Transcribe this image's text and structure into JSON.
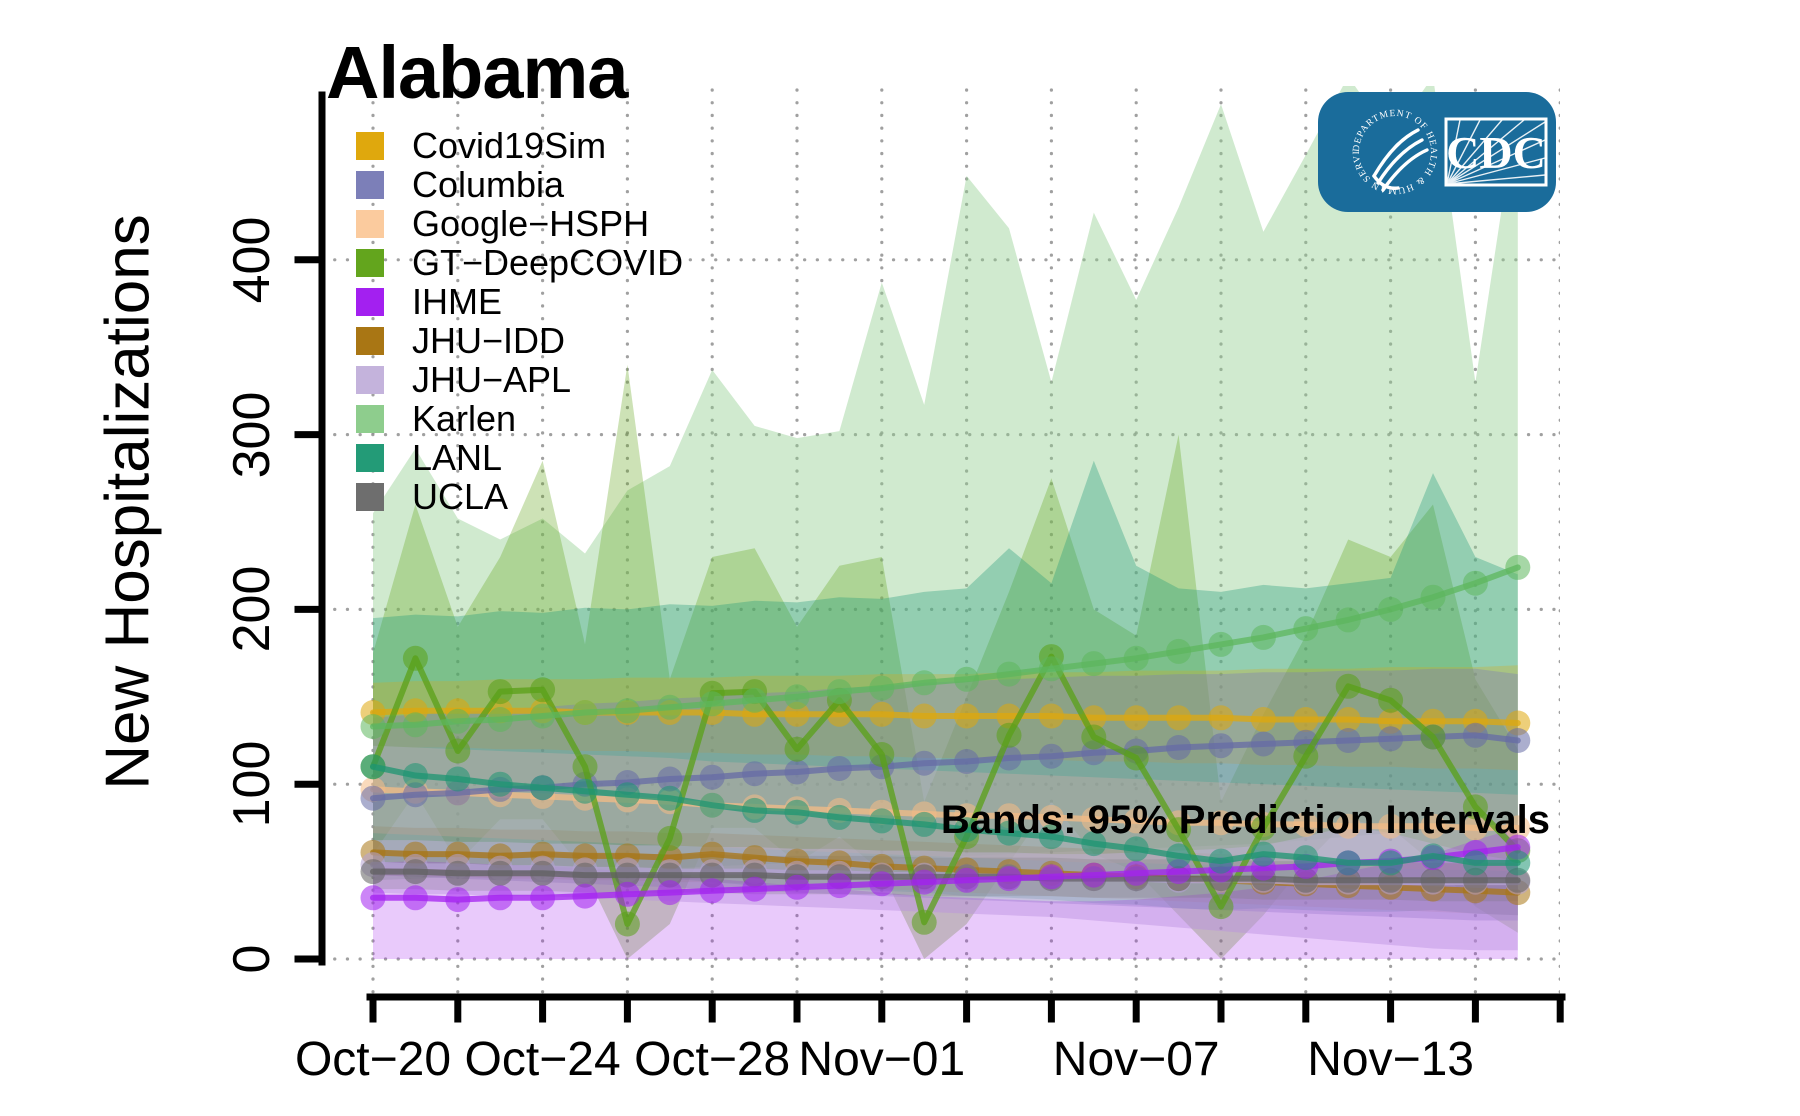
{
  "header": {
    "title": "Alabama"
  },
  "annotation": {
    "text": "Bands: 95% Prediction Intervals"
  },
  "cdc_logo": {
    "wordmark": "CDC",
    "seal_text": "DEPARTMENT OF HEALTH & HUMAN SERVICES USA",
    "bg_color": "#1A6C9B"
  },
  "legend": {
    "items": [
      {
        "label": "Covid19Sim",
        "color": "#DFA80D"
      },
      {
        "label": "Columbia",
        "color": "#7C7FB8"
      },
      {
        "label": "Google−HSPH",
        "color": "#FBCB9E"
      },
      {
        "label": "GT−DeepCOVID",
        "color": "#63A51D"
      },
      {
        "label": "IHME",
        "color": "#A320F0"
      },
      {
        "label": "JHU−IDD",
        "color": "#A97614"
      },
      {
        "label": "JHU−APL",
        "color": "#C4B3DC"
      },
      {
        "label": "Karlen",
        "color": "#8ECD8D"
      },
      {
        "label": "LANL",
        "color": "#239B77"
      },
      {
        "label": "UCLA",
        "color": "#6E6E6E"
      }
    ]
  },
  "chart_data": {
    "type": "line",
    "title": "Alabama",
    "ylabel": "New Hospitalizations",
    "annotation": "Bands: 95% Prediction Intervals",
    "grid": "dotted",
    "legend_position": "top-left",
    "ylim": [
      0,
      500
    ],
    "yticks": [
      0,
      100,
      200,
      300,
      400
    ],
    "x_tick_days": [
      0,
      2,
      4,
      6,
      8,
      10,
      12,
      14,
      16,
      18,
      20,
      22,
      24,
      26,
      28
    ],
    "x_tick_labels": [
      {
        "day": 0,
        "label": "Oct−20"
      },
      {
        "day": 4,
        "label": "Oct−24"
      },
      {
        "day": 8,
        "label": "Oct−28"
      },
      {
        "day": 12,
        "label": "Nov−01"
      },
      {
        "day": 18,
        "label": "Nov−07"
      },
      {
        "day": 24,
        "label": "Nov−13"
      }
    ],
    "dates": [
      "Oct-20",
      "Oct-21",
      "Oct-22",
      "Oct-23",
      "Oct-24",
      "Oct-25",
      "Oct-26",
      "Oct-27",
      "Oct-28",
      "Oct-29",
      "Oct-30",
      "Oct-31",
      "Nov-01",
      "Nov-02",
      "Nov-03",
      "Nov-04",
      "Nov-05",
      "Nov-06",
      "Nov-07",
      "Nov-08",
      "Nov-09",
      "Nov-10",
      "Nov-11",
      "Nov-12",
      "Nov-13",
      "Nov-14",
      "Nov-15",
      "Nov-16"
    ],
    "band_draw_order": [
      "Karlen",
      "GT-DeepCOVID",
      "LANL",
      "Google-HSPH",
      "JHU-IDD",
      "Covid19Sim",
      "Columbia",
      "JHU-APL",
      "IHME",
      "UCLA"
    ],
    "line_draw_order": [
      "Google-HSPH",
      "JHU-IDD",
      "JHU-APL",
      "Covid19Sim",
      "Columbia",
      "GT-DeepCOVID",
      "UCLA",
      "IHME",
      "LANL",
      "Karlen"
    ],
    "series": [
      {
        "name": "Covid19Sim",
        "color": "#DFA80D",
        "line_color": "#DFA80D",
        "band_opacity": 0.28,
        "values": [
          141,
          142,
          142,
          142,
          142,
          141,
          141,
          141,
          141,
          140,
          140,
          140,
          140,
          139,
          139,
          139,
          139,
          138,
          138,
          138,
          138,
          137,
          137,
          137,
          136,
          136,
          136,
          135
        ],
        "band_lower": [
          122,
          121,
          121,
          120,
          120,
          119,
          119,
          118,
          118,
          117,
          117,
          116,
          116,
          115,
          115,
          114,
          114,
          113,
          113,
          112,
          112,
          111,
          111,
          110,
          110,
          109,
          109,
          108
        ],
        "band_upper": [
          158,
          159,
          159,
          160,
          160,
          160,
          161,
          161,
          161,
          162,
          162,
          162,
          163,
          163,
          163,
          164,
          164,
          164,
          165,
          165,
          165,
          166,
          166,
          166,
          167,
          167,
          167,
          168
        ]
      },
      {
        "name": "Columbia",
        "color": "#7C7FB8",
        "line_color": "#666BA6",
        "band_opacity": 0.38,
        "values": [
          92,
          94,
          95,
          97,
          98,
          100,
          101,
          103,
          104,
          106,
          107,
          109,
          110,
          112,
          113,
          115,
          116,
          118,
          119,
          121,
          122,
          123,
          124,
          125,
          126,
          127,
          128,
          125
        ],
        "band_lower": [
          48,
          47,
          46,
          45,
          44,
          43,
          42,
          41,
          40,
          39,
          38,
          37,
          36,
          35,
          34,
          33,
          32,
          31,
          30,
          29,
          28,
          27,
          26,
          25,
          24,
          23,
          22,
          22
        ],
        "band_upper": [
          138,
          140,
          141,
          143,
          144,
          146,
          147,
          149,
          150,
          152,
          153,
          155,
          156,
          158,
          159,
          160,
          161,
          162,
          162,
          163,
          163,
          164,
          164,
          165,
          165,
          166,
          166,
          163
        ]
      },
      {
        "name": "Google-HSPH",
        "color": "#FBCB9E",
        "line_color": "#F4BC85",
        "band_opacity": 0.4,
        "values": [
          97,
          96,
          95,
          94,
          93,
          92,
          91,
          90,
          88,
          87,
          86,
          85,
          84,
          83,
          82,
          82,
          81,
          80,
          79,
          78,
          78,
          77,
          77,
          76,
          76,
          76,
          75,
          75
        ],
        "band_lower": [
          72,
          71,
          70,
          69,
          68,
          67,
          66,
          65,
          64,
          63,
          62,
          61,
          60,
          59,
          58,
          57,
          56,
          55,
          55,
          54,
          54,
          53,
          53,
          52,
          52,
          51,
          51,
          50
        ],
        "band_upper": [
          122,
          121,
          120,
          119,
          118,
          117,
          116,
          115,
          113,
          112,
          111,
          110,
          109,
          108,
          107,
          106,
          105,
          104,
          103,
          102,
          101,
          100,
          99,
          98,
          97,
          96,
          95,
          94
        ]
      },
      {
        "name": "GT-DeepCOVID",
        "color": "#63A51D",
        "line_color": "#5AA017",
        "band_opacity": 0.32,
        "values": [
          110,
          172,
          119,
          153,
          154,
          110,
          20,
          69,
          152,
          153,
          120,
          148,
          117,
          21,
          70,
          128,
          173,
          127,
          115,
          74,
          30,
          75,
          116,
          156,
          148,
          127,
          87,
          62
        ],
        "band_lower": [
          60,
          95,
          55,
          80,
          80,
          50,
          0,
          20,
          75,
          75,
          55,
          70,
          50,
          0,
          20,
          55,
          90,
          60,
          50,
          25,
          0,
          25,
          55,
          80,
          75,
          55,
          30,
          15
        ],
        "band_upper": [
          175,
          260,
          190,
          230,
          285,
          180,
          340,
          160,
          230,
          235,
          190,
          225,
          230,
          90,
          150,
          210,
          275,
          200,
          185,
          300,
          90,
          140,
          185,
          240,
          230,
          260,
          160,
          120
        ]
      },
      {
        "name": "IHME",
        "color": "#A320F0",
        "line_color": "#A320F0",
        "band_opacity": 0.24,
        "values": [
          35,
          35,
          34,
          35,
          35,
          36,
          37,
          38,
          39,
          40,
          41,
          42,
          43,
          44,
          45,
          46,
          47,
          48,
          49,
          50,
          51,
          52,
          53,
          55,
          56,
          58,
          61,
          64
        ],
        "band_lower": [
          0,
          0,
          0,
          0,
          0,
          0,
          0,
          0,
          0,
          0,
          0,
          0,
          0,
          0,
          0,
          0,
          0,
          0,
          0,
          0,
          0,
          0,
          0,
          0,
          0,
          0,
          0,
          0
        ],
        "band_upper": [
          55,
          56,
          55,
          54,
          53,
          52,
          50,
          48,
          46,
          44,
          42,
          40,
          38,
          36,
          35,
          34,
          33,
          33,
          34,
          36,
          38,
          41,
          45,
          50,
          55,
          60,
          68,
          75
        ]
      },
      {
        "name": "JHU-IDD",
        "color": "#A97614",
        "line_color": "#A97614",
        "band_opacity": 0.22,
        "values": [
          61,
          60,
          60,
          59,
          60,
          59,
          59,
          58,
          60,
          58,
          56,
          55,
          53,
          52,
          51,
          50,
          49,
          48,
          47,
          46,
          45,
          44,
          43,
          42,
          41,
          40,
          39,
          38
        ],
        "band_lower": [
          48,
          47,
          47,
          46,
          46,
          45,
          45,
          44,
          44,
          43,
          42,
          41,
          40,
          39,
          38,
          37,
          36,
          35,
          34,
          33,
          32,
          31,
          30,
          29,
          28,
          27,
          26,
          25
        ],
        "band_upper": [
          76,
          75,
          75,
          74,
          74,
          73,
          73,
          72,
          72,
          71,
          70,
          69,
          68,
          67,
          66,
          65,
          64,
          63,
          62,
          61,
          60,
          59,
          58,
          57,
          56,
          55,
          54,
          53
        ]
      },
      {
        "name": "JHU-APL",
        "color": "#C4B3DC",
        "line_color": "#B4A3D4",
        "band_opacity": 0.45,
        "values": [
          54,
          53,
          53,
          52,
          52,
          51,
          51,
          50,
          50,
          50,
          49,
          49,
          48,
          48,
          47,
          47,
          46,
          46,
          46,
          45,
          45,
          45,
          44,
          44,
          44,
          44,
          44,
          44
        ],
        "band_lower": [
          38,
          37,
          37,
          36,
          36,
          35,
          34,
          33,
          32,
          31,
          30,
          29,
          28,
          27,
          26,
          25,
          24,
          22,
          20,
          18,
          16,
          14,
          12,
          10,
          8,
          6,
          5,
          5
        ],
        "band_upper": [
          68,
          68,
          67,
          67,
          66,
          66,
          65,
          65,
          64,
          64,
          63,
          63,
          62,
          62,
          61,
          61,
          60,
          60,
          61,
          62,
          63,
          65,
          70,
          76,
          72,
          66,
          60,
          56
        ]
      },
      {
        "name": "Karlen",
        "color": "#8ECD8D",
        "line_color": "#5DB75D",
        "band_opacity": 0.42,
        "values": [
          133,
          134,
          136,
          137,
          139,
          141,
          142,
          144,
          146,
          148,
          150,
          153,
          155,
          158,
          160,
          163,
          166,
          169,
          172,
          176,
          180,
          184,
          189,
          194,
          200,
          207,
          215,
          224
        ],
        "band_lower": [
          45,
          46,
          47,
          48,
          49,
          50,
          51,
          52,
          53,
          54,
          55,
          56,
          57,
          58,
          59,
          60,
          61,
          62,
          63,
          64,
          65,
          66,
          68,
          70,
          72,
          74,
          76,
          78
        ],
        "band_upper": [
          255,
          292,
          252,
          240,
          252,
          232,
          268,
          282,
          337,
          305,
          298,
          302,
          387,
          317,
          448,
          418,
          330,
          427,
          377,
          430,
          489,
          416,
          460,
          505,
          470,
          505,
          330,
          490
        ]
      },
      {
        "name": "LANL",
        "color": "#239B77",
        "line_color": "#1E9672",
        "band_opacity": 0.35,
        "values": [
          110,
          105,
          103,
          100,
          98,
          96,
          94,
          92,
          88,
          85,
          84,
          81,
          79,
          77,
          74,
          72,
          70,
          66,
          63,
          59,
          56,
          60,
          58,
          55,
          55,
          59,
          55,
          55
        ],
        "band_lower": [
          55,
          53,
          52,
          50,
          49,
          48,
          47,
          46,
          44,
          42,
          41,
          40,
          39,
          38,
          36,
          35,
          34,
          32,
          31,
          29,
          28,
          29,
          28,
          27,
          27,
          28,
          26,
          25
        ],
        "band_upper": [
          195,
          197,
          196,
          199,
          198,
          201,
          200,
          203,
          202,
          205,
          204,
          207,
          206,
          210,
          212,
          235,
          215,
          285,
          225,
          212,
          210,
          214,
          212,
          215,
          218,
          278,
          230,
          220
        ]
      },
      {
        "name": "UCLA",
        "color": "#6E6E6E",
        "line_color": "#606060",
        "band_opacity": 0.22,
        "values": [
          50,
          50,
          49,
          49,
          49,
          48,
          48,
          48,
          48,
          48,
          47,
          47,
          47,
          47,
          47,
          47,
          46,
          46,
          46,
          46,
          46,
          46,
          45,
          45,
          45,
          45,
          45,
          45
        ],
        "band_lower": [
          40,
          40,
          39,
          39,
          39,
          38,
          38,
          38,
          38,
          37,
          37,
          37,
          37,
          36,
          36,
          36,
          36,
          35,
          35,
          35,
          35,
          34,
          34,
          34,
          34,
          33,
          33,
          33
        ],
        "band_upper": [
          62,
          62,
          61,
          61,
          61,
          60,
          60,
          60,
          60,
          59,
          59,
          59,
          59,
          58,
          58,
          58,
          58,
          57,
          57,
          57,
          57,
          56,
          56,
          56,
          56,
          55,
          55,
          55
        ]
      }
    ]
  }
}
